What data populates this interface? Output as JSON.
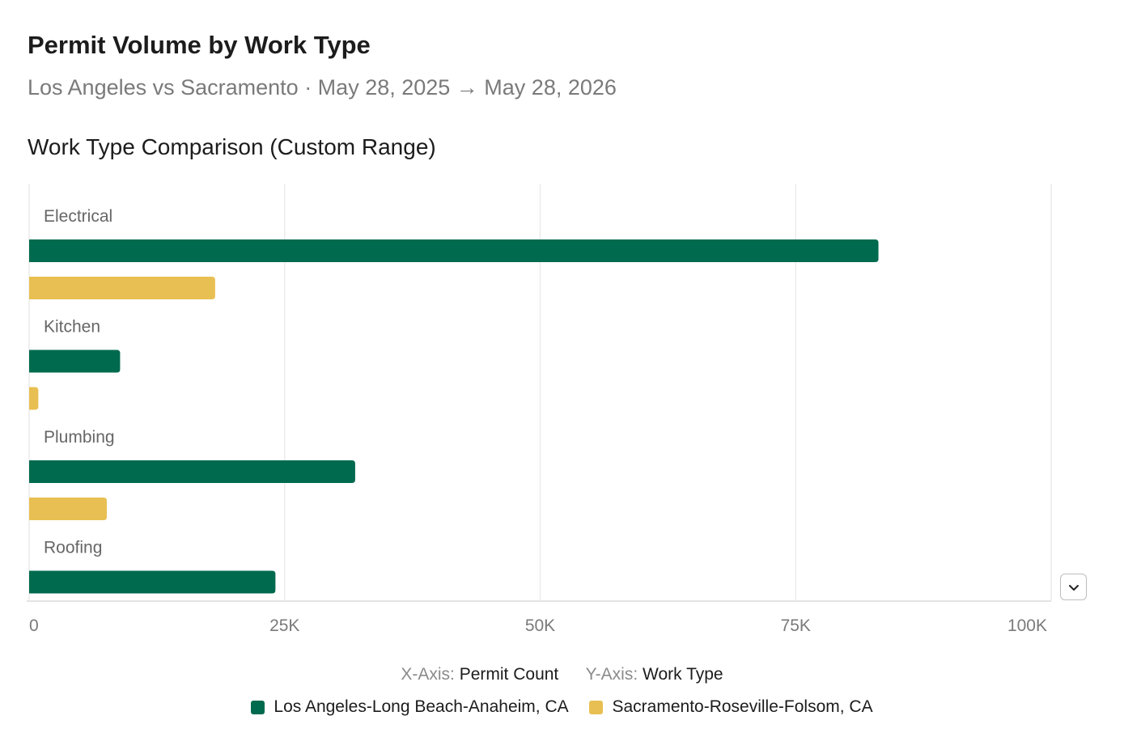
{
  "header": {
    "title": "Permit Volume by Work Type",
    "subtitle": "Los Angeles vs Sacramento · May 28, 2025 → May 28, 2026"
  },
  "chart_title": "Work Type Comparison (Custom Range)",
  "axes": {
    "x_key": "X-Axis:",
    "x_value": "Permit Count",
    "y_key": "Y-Axis:",
    "y_value": "Work Type"
  },
  "menu": {
    "icon": "chevron-down-icon"
  },
  "colors": {
    "la": "#006a4e",
    "sac": "#e8bf52",
    "grid": "#ececec"
  },
  "chart_data": {
    "type": "bar",
    "orientation": "horizontal",
    "categories": [
      "Electrical",
      "Kitchen",
      "Plumbing",
      "Roofing"
    ],
    "series": [
      {
        "name": "Los Angeles-Long Beach-Anaheim, CA",
        "color": "#006a4e",
        "values": [
          83100,
          8900,
          31900,
          24100
        ]
      },
      {
        "name": "Sacramento-Roseville-Folsom, CA",
        "color": "#e8bf52",
        "values": [
          18200,
          900,
          7600,
          null
        ]
      }
    ],
    "xlim": [
      0,
      100000
    ],
    "xticks": [
      0,
      25000,
      50000,
      75000,
      100000
    ],
    "xtick_labels": [
      "0",
      "25K",
      "50K",
      "75K",
      "100K"
    ],
    "xlabel": "Permit Count",
    "ylabel": "Work Type",
    "grid": true,
    "legend": "bottom-center"
  }
}
